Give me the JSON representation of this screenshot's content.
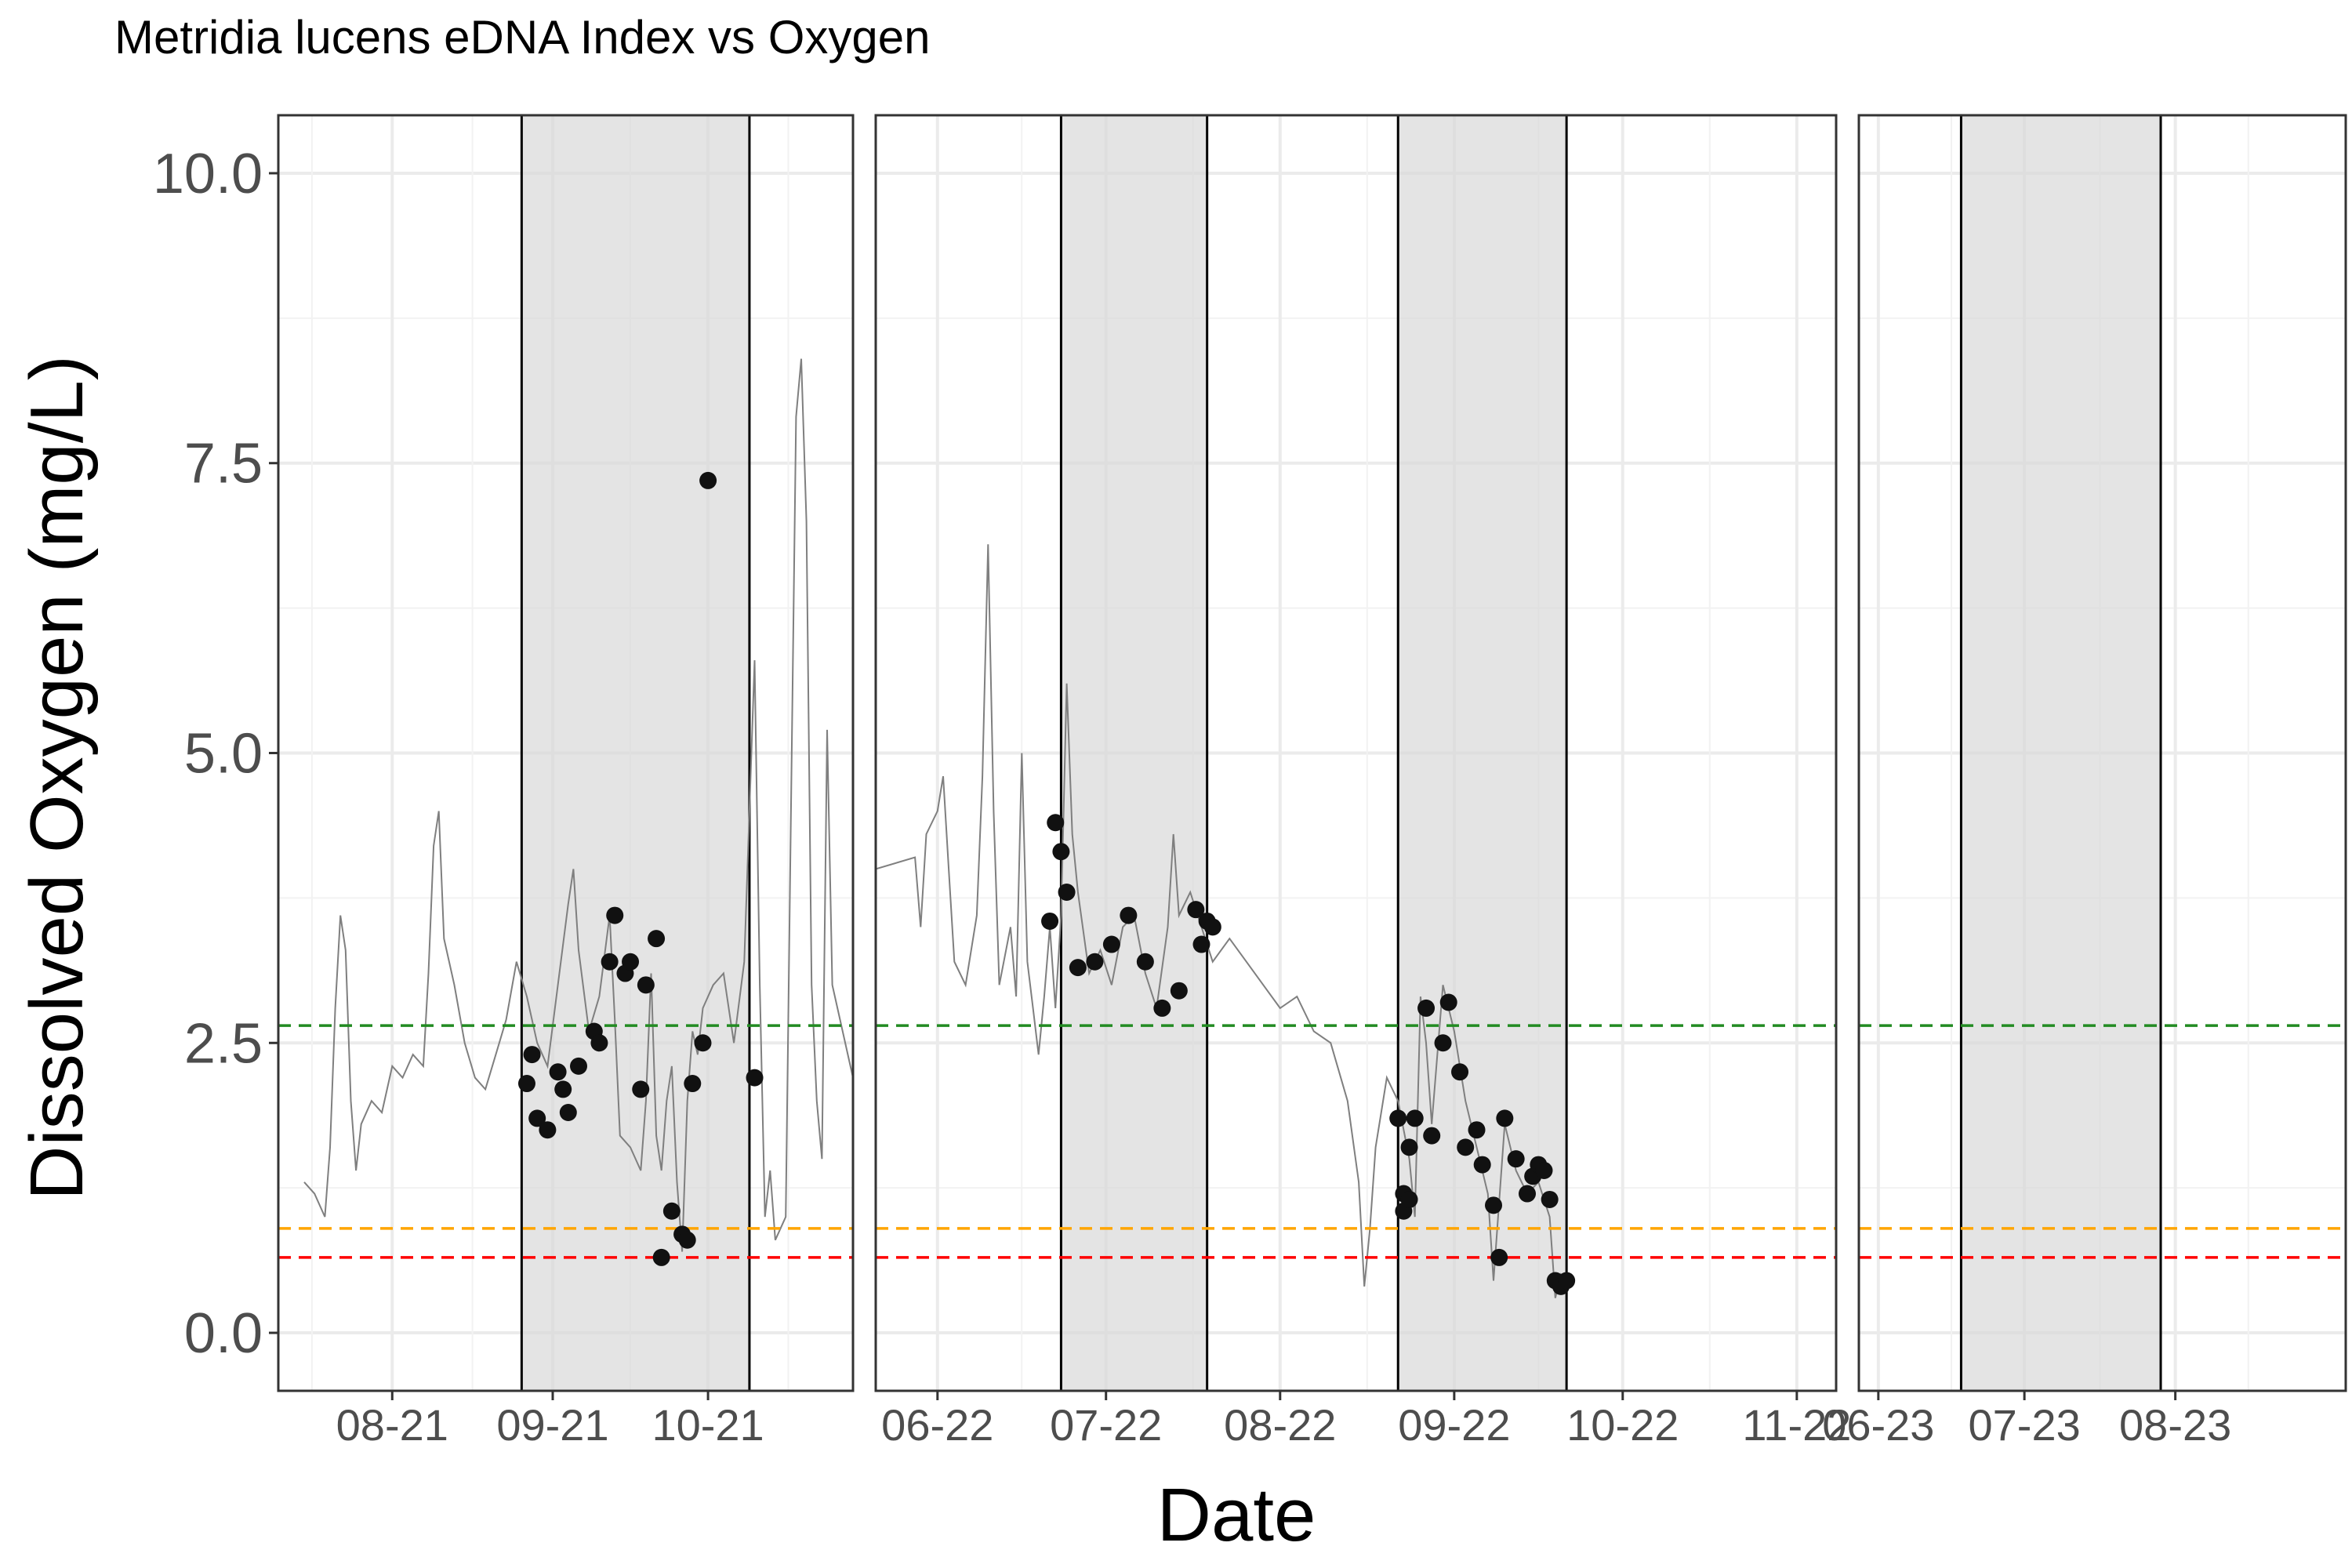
{
  "chart_data": {
    "type": "line",
    "title": "Metridia lucens eDNA Index vs Oxygen",
    "xlabel": "Date",
    "ylabel": "Dissolved Oxygen (mg/L)",
    "ylim": [
      -0.5,
      10.5
    ],
    "yticks": [
      "0.0",
      "2.5",
      "5.0",
      "7.5",
      "10.0"
    ],
    "grid": true,
    "thresholds": [
      {
        "value": 2.65,
        "color": "#228b22",
        "style": "dashed"
      },
      {
        "value": 0.9,
        "color": "#ffa500",
        "style": "dashed"
      },
      {
        "value": 0.65,
        "color": "#ff0000",
        "style": "dashed"
      }
    ],
    "panels": [
      {
        "xlim": [
          "2021-07-10",
          "2021-10-29"
        ],
        "ticks": [
          {
            "date": "2021-08-01",
            "label": "08-21"
          },
          {
            "date": "2021-09-01",
            "label": "09-21"
          },
          {
            "date": "2021-10-01",
            "label": "10-21"
          }
        ],
        "shaded": [
          {
            "start": "2021-08-26",
            "end": "2021-10-09"
          }
        ],
        "oxygen_line": [
          [
            "2021-07-15",
            1.3
          ],
          [
            "2021-07-17",
            1.2
          ],
          [
            "2021-07-19",
            1.0
          ],
          [
            "2021-07-20",
            1.6
          ],
          [
            "2021-07-21",
            2.8
          ],
          [
            "2021-07-22",
            3.6
          ],
          [
            "2021-07-23",
            3.3
          ],
          [
            "2021-07-24",
            2.0
          ],
          [
            "2021-07-25",
            1.4
          ],
          [
            "2021-07-26",
            1.8
          ],
          [
            "2021-07-28",
            2.0
          ],
          [
            "2021-07-30",
            1.9
          ],
          [
            "2021-08-01",
            2.3
          ],
          [
            "2021-08-03",
            2.2
          ],
          [
            "2021-08-05",
            2.4
          ],
          [
            "2021-08-07",
            2.3
          ],
          [
            "2021-08-08",
            3.1
          ],
          [
            "2021-08-09",
            4.2
          ],
          [
            "2021-08-10",
            4.5
          ],
          [
            "2021-08-11",
            3.4
          ],
          [
            "2021-08-13",
            3.0
          ],
          [
            "2021-08-15",
            2.5
          ],
          [
            "2021-08-17",
            2.2
          ],
          [
            "2021-08-19",
            2.1
          ],
          [
            "2021-08-21",
            2.4
          ],
          [
            "2021-08-23",
            2.7
          ],
          [
            "2021-08-25",
            3.2
          ],
          [
            "2021-08-27",
            2.9
          ],
          [
            "2021-08-29",
            2.5
          ],
          [
            "2021-08-31",
            2.3
          ],
          [
            "2021-09-02",
            3.0
          ],
          [
            "2021-09-04",
            3.7
          ],
          [
            "2021-09-05",
            4.0
          ],
          [
            "2021-09-06",
            3.3
          ],
          [
            "2021-09-08",
            2.6
          ],
          [
            "2021-09-10",
            2.9
          ],
          [
            "2021-09-12",
            3.6
          ],
          [
            "2021-09-13",
            2.7
          ],
          [
            "2021-09-14",
            1.7
          ],
          [
            "2021-09-16",
            1.6
          ],
          [
            "2021-09-18",
            1.4
          ],
          [
            "2021-09-19",
            2.0
          ],
          [
            "2021-09-20",
            3.1
          ],
          [
            "2021-09-21",
            1.7
          ],
          [
            "2021-09-22",
            1.4
          ],
          [
            "2021-09-23",
            2.0
          ],
          [
            "2021-09-24",
            2.3
          ],
          [
            "2021-09-25",
            1.3
          ],
          [
            "2021-09-26",
            0.7
          ],
          [
            "2021-09-27",
            2.0
          ],
          [
            "2021-09-28",
            2.6
          ],
          [
            "2021-09-29",
            2.4
          ],
          [
            "2021-09-30",
            2.8
          ],
          [
            "2021-10-02",
            3.0
          ],
          [
            "2021-10-04",
            3.1
          ],
          [
            "2021-10-06",
            2.5
          ],
          [
            "2021-10-08",
            3.2
          ],
          [
            "2021-10-10",
            5.8
          ],
          [
            "2021-10-11",
            3.0
          ],
          [
            "2021-10-12",
            1.0
          ],
          [
            "2021-10-13",
            1.4
          ],
          [
            "2021-10-14",
            0.8
          ],
          [
            "2021-10-16",
            1.0
          ],
          [
            "2021-10-18",
            7.9
          ],
          [
            "2021-10-19",
            8.4
          ],
          [
            "2021-10-20",
            7.0
          ],
          [
            "2021-10-21",
            3.0
          ],
          [
            "2021-10-22",
            2.0
          ],
          [
            "2021-10-23",
            1.5
          ],
          [
            "2021-10-24",
            5.2
          ],
          [
            "2021-10-25",
            3.0
          ],
          [
            "2021-10-29",
            2.2
          ]
        ],
        "edna_points": [
          [
            "2021-08-27",
            2.15
          ],
          [
            "2021-08-28",
            2.4
          ],
          [
            "2021-08-29",
            1.85
          ],
          [
            "2021-08-31",
            1.75
          ],
          [
            "2021-09-02",
            2.25
          ],
          [
            "2021-09-03",
            2.1
          ],
          [
            "2021-09-04",
            1.9
          ],
          [
            "2021-09-06",
            2.3
          ],
          [
            "2021-09-09",
            2.6
          ],
          [
            "2021-09-10",
            2.5
          ],
          [
            "2021-09-12",
            3.2
          ],
          [
            "2021-09-13",
            3.6
          ],
          [
            "2021-09-15",
            3.1
          ],
          [
            "2021-09-16",
            3.2
          ],
          [
            "2021-09-18",
            2.1
          ],
          [
            "2021-09-19",
            3.0
          ],
          [
            "2021-09-21",
            3.4
          ],
          [
            "2021-09-22",
            0.65
          ],
          [
            "2021-09-24",
            1.05
          ],
          [
            "2021-09-26",
            0.85
          ],
          [
            "2021-09-27",
            0.8
          ],
          [
            "2021-09-28",
            2.15
          ],
          [
            "2021-09-30",
            2.5
          ],
          [
            "2021-10-01",
            7.35
          ],
          [
            "2021-10-10",
            2.2
          ]
        ]
      },
      {
        "xlim": [
          "2022-05-21",
          "2022-11-08"
        ],
        "ticks": [
          {
            "date": "2022-06-01",
            "label": "06-22"
          },
          {
            "date": "2022-07-01",
            "label": "07-22"
          },
          {
            "date": "2022-08-01",
            "label": "08-22"
          },
          {
            "date": "2022-09-01",
            "label": "09-22"
          },
          {
            "date": "2022-10-01",
            "label": "10-22"
          },
          {
            "date": "2022-11-01",
            "label": "11-22"
          }
        ],
        "shaded": [
          {
            "start": "2022-06-23",
            "end": "2022-07-19"
          },
          {
            "start": "2022-08-22",
            "end": "2022-09-21"
          }
        ],
        "oxygen_line": [
          [
            "2022-05-21",
            4.0
          ],
          [
            "2022-05-28",
            4.1
          ],
          [
            "2022-05-29",
            3.5
          ],
          [
            "2022-05-30",
            4.3
          ],
          [
            "2022-06-01",
            4.5
          ],
          [
            "2022-06-02",
            4.8
          ],
          [
            "2022-06-03",
            4.0
          ],
          [
            "2022-06-04",
            3.2
          ],
          [
            "2022-06-06",
            3.0
          ],
          [
            "2022-06-08",
            3.6
          ],
          [
            "2022-06-09",
            4.8
          ],
          [
            "2022-06-10",
            6.8
          ],
          [
            "2022-06-11",
            4.5
          ],
          [
            "2022-06-12",
            3.0
          ],
          [
            "2022-06-14",
            3.5
          ],
          [
            "2022-06-15",
            2.9
          ],
          [
            "2022-06-16",
            5.0
          ],
          [
            "2022-06-17",
            3.2
          ],
          [
            "2022-06-18",
            2.8
          ],
          [
            "2022-06-19",
            2.4
          ],
          [
            "2022-06-20",
            2.9
          ],
          [
            "2022-06-21",
            3.5
          ],
          [
            "2022-06-22",
            2.8
          ],
          [
            "2022-06-23",
            3.6
          ],
          [
            "2022-06-24",
            5.6
          ],
          [
            "2022-06-25",
            4.3
          ],
          [
            "2022-06-26",
            3.8
          ],
          [
            "2022-06-28",
            3.1
          ],
          [
            "2022-06-30",
            3.3
          ],
          [
            "2022-07-02",
            3.0
          ],
          [
            "2022-07-04",
            3.5
          ],
          [
            "2022-07-06",
            3.6
          ],
          [
            "2022-07-08",
            3.1
          ],
          [
            "2022-07-10",
            2.8
          ],
          [
            "2022-07-12",
            3.5
          ],
          [
            "2022-07-13",
            4.3
          ],
          [
            "2022-07-14",
            3.6
          ],
          [
            "2022-07-16",
            3.8
          ],
          [
            "2022-07-18",
            3.5
          ],
          [
            "2022-07-20",
            3.2
          ],
          [
            "2022-07-23",
            3.4
          ],
          [
            "2022-07-26",
            3.2
          ],
          [
            "2022-07-29",
            3.0
          ],
          [
            "2022-08-01",
            2.8
          ],
          [
            "2022-08-04",
            2.9
          ],
          [
            "2022-08-07",
            2.6
          ],
          [
            "2022-08-10",
            2.5
          ],
          [
            "2022-08-13",
            2.0
          ],
          [
            "2022-08-15",
            1.3
          ],
          [
            "2022-08-16",
            0.4
          ],
          [
            "2022-08-17",
            0.9
          ],
          [
            "2022-08-18",
            1.6
          ],
          [
            "2022-08-20",
            2.2
          ],
          [
            "2022-08-22",
            2.0
          ],
          [
            "2022-08-24",
            1.5
          ],
          [
            "2022-08-25",
            1.0
          ],
          [
            "2022-08-26",
            2.9
          ],
          [
            "2022-08-27",
            2.5
          ],
          [
            "2022-08-28",
            1.8
          ],
          [
            "2022-08-30",
            3.0
          ],
          [
            "2022-09-01",
            2.6
          ],
          [
            "2022-09-03",
            2.0
          ],
          [
            "2022-09-05",
            1.6
          ],
          [
            "2022-09-07",
            1.2
          ],
          [
            "2022-09-08",
            0.45
          ],
          [
            "2022-09-10",
            1.8
          ],
          [
            "2022-09-12",
            1.4
          ],
          [
            "2022-09-14",
            1.2
          ],
          [
            "2022-09-16",
            1.3
          ],
          [
            "2022-09-18",
            1.0
          ],
          [
            "2022-09-19",
            0.3
          ],
          [
            "2022-09-20",
            0.5
          ],
          [
            "2022-09-21",
            0.4
          ]
        ],
        "edna_points": [
          [
            "2022-06-21",
            3.55
          ],
          [
            "2022-06-22",
            4.4
          ],
          [
            "2022-06-23",
            4.15
          ],
          [
            "2022-06-24",
            3.8
          ],
          [
            "2022-06-26",
            3.15
          ],
          [
            "2022-06-29",
            3.2
          ],
          [
            "2022-07-02",
            3.35
          ],
          [
            "2022-07-05",
            3.6
          ],
          [
            "2022-07-08",
            3.2
          ],
          [
            "2022-07-11",
            2.8
          ],
          [
            "2022-07-14",
            2.95
          ],
          [
            "2022-07-17",
            3.65
          ],
          [
            "2022-07-18",
            3.35
          ],
          [
            "2022-07-19",
            3.55
          ],
          [
            "2022-07-20",
            3.5
          ],
          [
            "2022-08-22",
            1.85
          ],
          [
            "2022-08-23",
            1.2
          ],
          [
            "2022-08-23",
            1.05
          ],
          [
            "2022-08-24",
            1.15
          ],
          [
            "2022-08-24",
            1.6
          ],
          [
            "2022-08-25",
            1.85
          ],
          [
            "2022-08-27",
            2.8
          ],
          [
            "2022-08-28",
            1.7
          ],
          [
            "2022-08-30",
            2.5
          ],
          [
            "2022-08-31",
            2.85
          ],
          [
            "2022-09-02",
            2.25
          ],
          [
            "2022-09-03",
            1.6
          ],
          [
            "2022-09-05",
            1.75
          ],
          [
            "2022-09-06",
            1.45
          ],
          [
            "2022-09-08",
            1.1
          ],
          [
            "2022-09-09",
            0.65
          ],
          [
            "2022-09-10",
            1.85
          ],
          [
            "2022-09-12",
            1.5
          ],
          [
            "2022-09-14",
            1.2
          ],
          [
            "2022-09-15",
            1.35
          ],
          [
            "2022-09-16",
            1.45
          ],
          [
            "2022-09-17",
            1.4
          ],
          [
            "2022-09-18",
            1.15
          ],
          [
            "2022-09-19",
            0.45
          ],
          [
            "2022-09-20",
            0.4
          ],
          [
            "2022-09-21",
            0.45
          ]
        ]
      },
      {
        "xlim": [
          "2023-05-28",
          "2023-09-05"
        ],
        "ticks": [
          {
            "date": "2023-06-01",
            "label": "06-23"
          },
          {
            "date": "2023-07-01",
            "label": "07-23"
          },
          {
            "date": "2023-08-01",
            "label": "08-23"
          }
        ],
        "shaded": [
          {
            "start": "2023-06-18",
            "end": "2023-07-29"
          }
        ],
        "oxygen_line": [],
        "edna_points": []
      }
    ]
  }
}
